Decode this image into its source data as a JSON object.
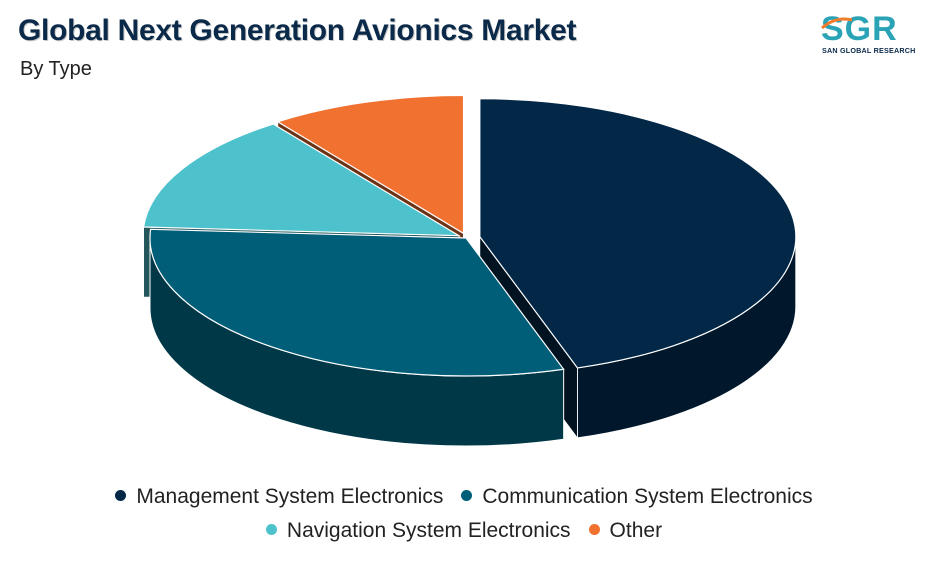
{
  "header": {
    "title": "Global Next Generation Avionics Market",
    "subtitle": "By Type"
  },
  "logo": {
    "brand": "SGR",
    "tagline": "SAN GLOBAL RESEARCH",
    "colors": {
      "primary": "#2aa3b6",
      "accent": "#f07c2c"
    }
  },
  "chart_data": {
    "type": "pie",
    "style": "3d-exploded",
    "title": "Global Next Generation Avionics Market",
    "subtitle": "By Type",
    "legend_placement": "bottom",
    "categories": [
      "Management System Electronics",
      "Communication System Electronics",
      "Navigation System Electronics",
      "Other"
    ],
    "values": [
      45,
      31,
      14,
      10
    ],
    "colors": [
      "#022747",
      "#015e78",
      "#4ec2cc",
      "#f07130"
    ]
  },
  "legend": {
    "rows": [
      [
        "Management System Electronics",
        "Communication System Electronics"
      ],
      [
        "Navigation System Electronics",
        "Other"
      ]
    ]
  }
}
